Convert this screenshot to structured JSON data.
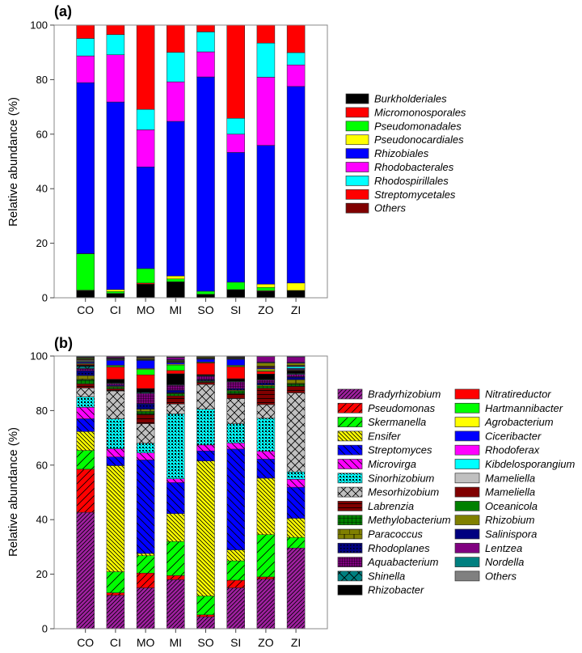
{
  "chart_data": [
    {
      "type": "bar",
      "stacked": true,
      "panel_label": "(a)",
      "title": "",
      "xlabel": "",
      "ylabel": "Relative abundance (%)",
      "ylim": [
        0,
        100
      ],
      "yticks": [
        "0",
        "20",
        "40",
        "60",
        "80",
        "100"
      ],
      "categories": [
        "CO",
        "CI",
        "MO",
        "MI",
        "SO",
        "SI",
        "ZO",
        "ZI"
      ],
      "legend_position": "right",
      "series": [
        {
          "name": "Burkholderiales",
          "color": "#000000",
          "values": [
            2.6,
            1.6,
            5.0,
            5.9,
            1.3,
            3.0,
            2.4,
            2.7
          ]
        },
        {
          "name": "Micromonosporales",
          "color": "#ff0000",
          "values": [
            0.2,
            0,
            0.4,
            0,
            0,
            0,
            0.2,
            0
          ]
        },
        {
          "name": "Pseudomonadales",
          "color": "#00ff00",
          "values": [
            13.3,
            0.7,
            5.3,
            1.0,
            1.1,
            2.7,
            1.2,
            0
          ]
        },
        {
          "name": "Pseudonocardiales",
          "color": "#ffff00",
          "values": [
            0.1,
            0.7,
            0,
            1.1,
            0,
            0,
            1.2,
            2.7
          ]
        },
        {
          "name": "Rhizobiales",
          "color": "#0000ff",
          "values": [
            62.7,
            68.8,
            37.3,
            56.7,
            78.6,
            47.6,
            50.9,
            72.1
          ]
        },
        {
          "name": "Rhodobacterales",
          "color": "#ff00ff",
          "values": [
            9.8,
            17.3,
            13.6,
            14.5,
            9.2,
            6.7,
            25.0,
            7.9
          ]
        },
        {
          "name": "Rhodospirillales",
          "color": "#00ffff",
          "values": [
            6.4,
            7.4,
            7.5,
            10.8,
            7.3,
            5.8,
            12.5,
            4.5
          ]
        },
        {
          "name": "Streptomycetales",
          "color": "#ff0000",
          "values": [
            4.9,
            3.5,
            30.9,
            10.0,
            2.5,
            34.2,
            6.6,
            10.1
          ]
        },
        {
          "name": "Others",
          "color": "#800000",
          "values": [
            0,
            0,
            0,
            0,
            0,
            0,
            0,
            0
          ]
        }
      ]
    },
    {
      "type": "bar",
      "stacked": true,
      "panel_label": "(b)",
      "title": "",
      "xlabel": "",
      "ylabel": "Relative abundance (%)",
      "ylim": [
        0,
        100
      ],
      "yticks": [
        "0",
        "20",
        "40",
        "60",
        "80",
        "100"
      ],
      "categories": [
        "CO",
        "CI",
        "MO",
        "MI",
        "SO",
        "SI",
        "ZO",
        "ZI"
      ],
      "legend_position": "right",
      "series": [
        {
          "name": "Bradyrhizobium",
          "color": "#a020a0",
          "values": [
            42.7,
            12.3,
            15.0,
            18.0,
            4.4,
            15.0,
            18.2,
            29.6
          ]
        },
        {
          "name": "Pseudomonas",
          "color": "#ff0000",
          "values": [
            15.8,
            0.9,
            5.4,
            1.5,
            0.7,
            2.8,
            0.8,
            0
          ]
        },
        {
          "name": "Skermanella",
          "color": "#00ff00",
          "values": [
            6.9,
            7.7,
            6.4,
            12.5,
            6.9,
            7.1,
            15.5,
            3.9
          ]
        },
        {
          "name": "Ensifer",
          "color": "#ffff00",
          "values": [
            6.9,
            38.9,
            0.8,
            10.2,
            49.5,
            4.0,
            20.7,
            7.0
          ]
        },
        {
          "name": "Streptomyces",
          "color": "#0000ff",
          "values": [
            4.7,
            3.2,
            34.3,
            11.4,
            3.7,
            37.0,
            7.0,
            11.4
          ]
        },
        {
          "name": "Microvirga",
          "color": "#ff00ff",
          "values": [
            4.2,
            3.0,
            2.6,
            1.4,
            2.2,
            2.2,
            2.9,
            2.9
          ]
        },
        {
          "name": "Sinorhizobium",
          "color": "#00ffff",
          "values": [
            3.8,
            11.0,
            3.5,
            23.8,
            13.1,
            7.1,
            12.1,
            2.7
          ]
        },
        {
          "name": "Mesorhizobium",
          "color": "#c0c0c0",
          "values": [
            3.3,
            10.2,
            7.2,
            3.6,
            9.1,
            9.2,
            5.0,
            29.0
          ]
        },
        {
          "name": "Labrenzia",
          "color": "#800000",
          "values": [
            1.5,
            0.8,
            3.5,
            3.0,
            0.8,
            1.8,
            6.0,
            2.5
          ]
        },
        {
          "name": "Methylobacterium",
          "color": "#008000",
          "values": [
            1.5,
            0.6,
            1.0,
            0.8,
            0.3,
            1.0,
            0.8,
            0.8
          ]
        },
        {
          "name": "Paracoccus",
          "color": "#808000",
          "values": [
            1.5,
            0.3,
            0.8,
            0.3,
            0.2,
            0.3,
            0.4,
            1.5
          ]
        },
        {
          "name": "Rhodoplanes",
          "color": "#000080",
          "values": [
            1.8,
            0.4,
            2.0,
            1.0,
            0.4,
            0.6,
            0.8,
            1.0
          ]
        },
        {
          "name": "Aquabacterium",
          "color": "#800080",
          "values": [
            0.8,
            0.6,
            3.8,
            1.8,
            1.4,
            2.4,
            1.0,
            1.0
          ]
        },
        {
          "name": "Shinella",
          "color": "#008080",
          "values": [
            0.8,
            0.2,
            0.3,
            0.2,
            0.1,
            0.2,
            0.2,
            0.3
          ]
        },
        {
          "name": "Rhizobacter",
          "color": "#000000",
          "values": [
            0.5,
            1.4,
            1.5,
            4.0,
            0.4,
            1.0,
            2.0,
            1.0
          ]
        },
        {
          "name": "Nitratireductor",
          "color": "#ff0000",
          "values": [
            0.3,
            4.5,
            5.0,
            1.2,
            4.2,
            4.4,
            1.0,
            0.2
          ]
        },
        {
          "name": "Hartmannibacter",
          "color": "#00ff00",
          "values": [
            0.2,
            0.4,
            2.0,
            2.0,
            0.2,
            0.3,
            0.3,
            0.1
          ]
        },
        {
          "name": "Agrobacterium",
          "color": "#ffff00",
          "values": [
            0.2,
            0.2,
            0.3,
            0.3,
            0.2,
            0.2,
            0.5,
            0.2
          ]
        },
        {
          "name": "Ciceribacter",
          "color": "#0000ff",
          "values": [
            0.3,
            1.8,
            3.0,
            0.5,
            1.0,
            2.2,
            0.3,
            0.3
          ]
        },
        {
          "name": "Rhodoferax",
          "color": "#ff00ff",
          "values": [
            0.2,
            0.2,
            0.1,
            0.2,
            0.1,
            0.1,
            0.2,
            0.1
          ]
        },
        {
          "name": "Kibdelosporangium",
          "color": "#00ffff",
          "values": [
            0.2,
            0.2,
            0.1,
            0.1,
            0.1,
            0.1,
            0.1,
            0.6
          ]
        },
        {
          "name": "Mameliella",
          "color": "#c0c0c0",
          "values": [
            0.3,
            0.1,
            0.1,
            0.1,
            0.1,
            0.1,
            0.1,
            0.2
          ]
        },
        {
          "name": "Mameliella",
          "color": "#800000",
          "values": [
            0.3,
            0.1,
            0.1,
            0.1,
            0.1,
            0.1,
            0.3,
            0.2
          ]
        },
        {
          "name": "Oceanicola",
          "color": "#008000",
          "values": [
            0.3,
            0.1,
            0.1,
            0.1,
            0.1,
            0.1,
            0.1,
            0.1
          ]
        },
        {
          "name": "Rhizobium",
          "color": "#808000",
          "values": [
            0.3,
            0.1,
            0.4,
            0.3,
            0.3,
            0.2,
            1.2,
            0.8
          ]
        },
        {
          "name": "Salinispora",
          "color": "#000080",
          "values": [
            0.2,
            0.1,
            0.2,
            0.3,
            0.1,
            0.1,
            0.3,
            0.3
          ]
        },
        {
          "name": "Lentzea",
          "color": "#800080",
          "values": [
            0.2,
            0.4,
            0.2,
            0.8,
            0.1,
            0.2,
            2.0,
            2.0
          ]
        },
        {
          "name": "Nordella",
          "color": "#008080",
          "values": [
            0.2,
            0.1,
            0.1,
            0.1,
            0.1,
            0.1,
            0.1,
            0.2
          ]
        },
        {
          "name": "Others",
          "color": "#808080",
          "values": [
            0.1,
            0.2,
            0.2,
            0.4,
            0.1,
            0.1,
            0.1,
            0.1
          ]
        }
      ]
    }
  ]
}
